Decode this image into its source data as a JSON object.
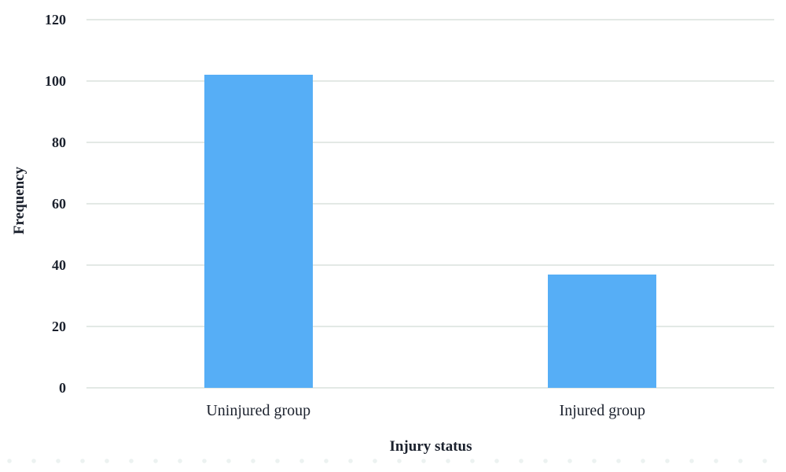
{
  "chart_data": {
    "type": "bar",
    "title": "",
    "categories": [
      "Uninjured group",
      "Injured group"
    ],
    "values": [
      102,
      37
    ],
    "xlabel": "Injury status",
    "ylabel": "Frequency",
    "ylim": [
      0,
      120
    ],
    "yticks": [
      0,
      20,
      40,
      60,
      80,
      100,
      120
    ],
    "grid": "horizontal",
    "legend_position": "none",
    "bar_color": "#56AEF6",
    "gridline_color": "#E3E9E5",
    "text_color": "#1B212D",
    "background_color": "#FFFFFF"
  }
}
